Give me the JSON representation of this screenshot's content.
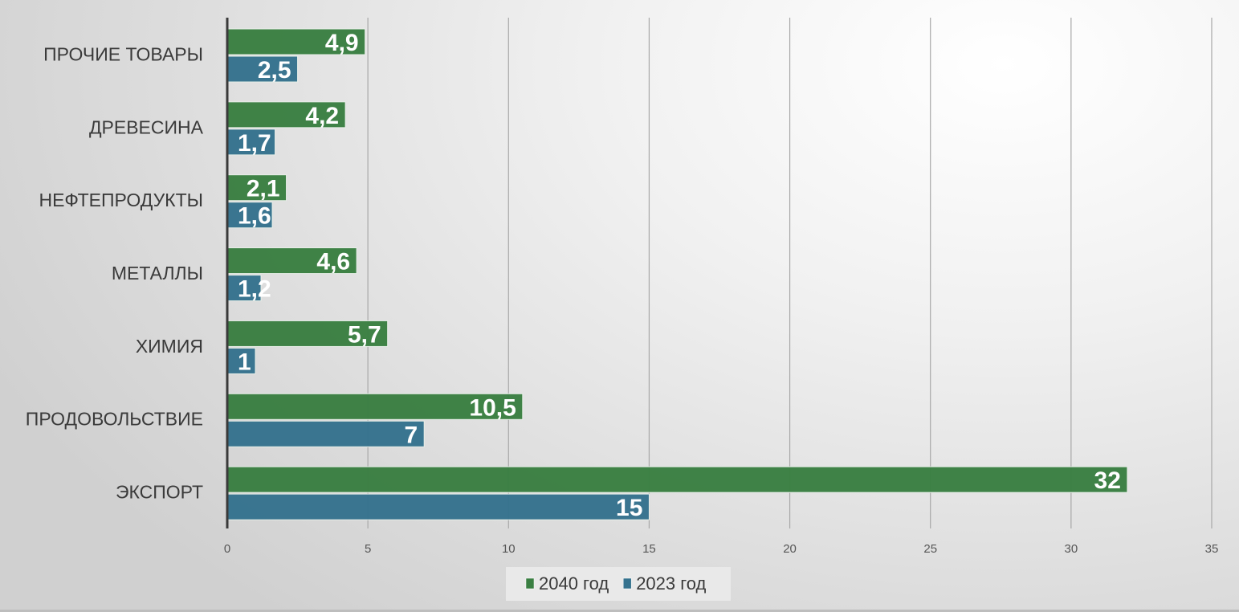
{
  "chart_data": {
    "type": "bar",
    "orientation": "horizontal",
    "categories": [
      "ЭКСПОРТ",
      "ПРОДОВОЛЬСТВИЕ",
      "ХИМИЯ",
      "МЕТАЛЛЫ",
      "НЕФТЕПРОДУКТЫ",
      "ДРЕВЕСИНА",
      "ПРОЧИЕ ТОВАРЫ"
    ],
    "series": [
      {
        "name": "2040 год",
        "color": "#3a7f42",
        "values": [
          32,
          10.5,
          5.7,
          4.6,
          2.1,
          4.2,
          4.9
        ],
        "labels": [
          "32",
          "10,5",
          "5,7",
          "4,6",
          "2,1",
          "4,2",
          "4,9"
        ]
      },
      {
        "name": "2023 год",
        "color": "#35728e",
        "values": [
          15,
          7,
          1,
          1.2,
          1.6,
          1.7,
          2.5
        ],
        "labels": [
          "15",
          "7",
          "1",
          "1,2",
          "1,6",
          "1,7",
          "2,5"
        ]
      }
    ],
    "xlim": [
      0,
      35
    ],
    "xticks": [
      "0",
      "5",
      "10",
      "15",
      "20",
      "25",
      "30",
      "35"
    ],
    "grid": true,
    "legend": "bottom"
  }
}
